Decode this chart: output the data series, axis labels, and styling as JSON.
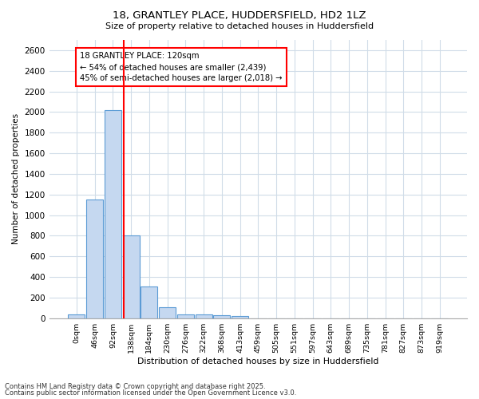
{
  "title1": "18, GRANTLEY PLACE, HUDDERSFIELD, HD2 1LZ",
  "title2": "Size of property relative to detached houses in Huddersfield",
  "xlabel": "Distribution of detached houses by size in Huddersfield",
  "ylabel": "Number of detached properties",
  "bin_labels": [
    "0sqm",
    "46sqm",
    "92sqm",
    "138sqm",
    "184sqm",
    "230sqm",
    "276sqm",
    "322sqm",
    "368sqm",
    "413sqm",
    "459sqm",
    "505sqm",
    "551sqm",
    "597sqm",
    "643sqm",
    "689sqm",
    "735sqm",
    "781sqm",
    "827sqm",
    "873sqm",
    "919sqm"
  ],
  "bar_values": [
    35,
    1150,
    2020,
    800,
    305,
    105,
    40,
    35,
    30,
    20,
    0,
    0,
    0,
    0,
    0,
    0,
    0,
    0,
    0,
    0,
    0
  ],
  "bar_color": "#c5d8f0",
  "bar_edge_color": "#5b9bd5",
  "vline_x": 2.608,
  "vline_color": "red",
  "annotation_text": "18 GRANTLEY PLACE: 120sqm\n← 54% of detached houses are smaller (2,439)\n45% of semi-detached houses are larger (2,018) →",
  "annotation_box_color": "white",
  "annotation_box_edge_color": "red",
  "ylim": [
    0,
    2700
  ],
  "yticks": [
    0,
    200,
    400,
    600,
    800,
    1000,
    1200,
    1400,
    1600,
    1800,
    2000,
    2200,
    2400,
    2600
  ],
  "footnote1": "Contains HM Land Registry data © Crown copyright and database right 2025.",
  "footnote2": "Contains public sector information licensed under the Open Government Licence v3.0.",
  "background_color": "#ffffff",
  "plot_bg_color": "#ffffff",
  "grid_color": "#d0dce8"
}
